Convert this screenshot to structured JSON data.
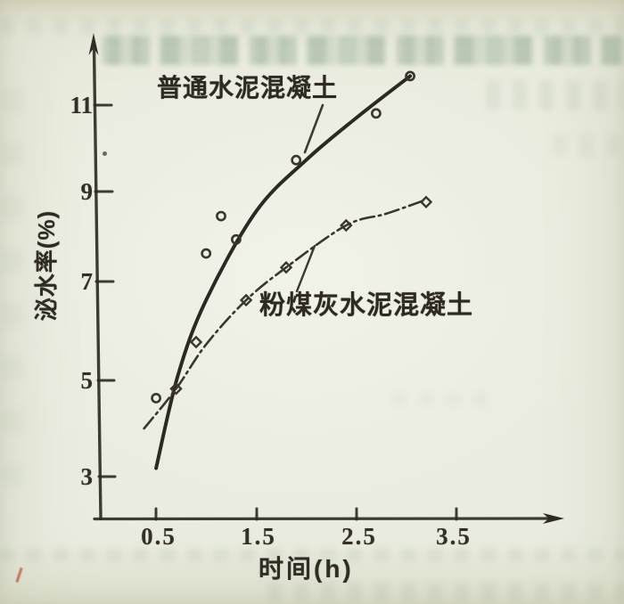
{
  "figure_kind": "scanned chart from printed page",
  "chart_data": {
    "type": "line",
    "title": "",
    "xlabel": "时间(h)",
    "ylabel": "泌水率(%)",
    "x_tick_labels": [
      "0.5",
      "1.5",
      "2.5",
      "3.5"
    ],
    "y_tick_labels": [
      "11",
      "9",
      "7",
      "5",
      "3"
    ],
    "xlim": [
      0,
      4.6
    ],
    "ylim": [
      2.1,
      12.6
    ],
    "grid": false,
    "legend_position": "inline annotations with leader lines",
    "series": [
      {
        "name": "普通水泥混凝土",
        "marker": "circle",
        "line_style": "solid",
        "points": [
          [
            0.5,
            4.7
          ],
          [
            1.0,
            7.8
          ],
          [
            1.15,
            8.6
          ],
          [
            1.3,
            8.1
          ],
          [
            1.9,
            9.8
          ],
          [
            2.7,
            10.8
          ],
          [
            3.04,
            11.6
          ]
        ],
        "trend": [
          [
            0.5,
            3.2
          ],
          [
            0.72,
            5.2
          ],
          [
            1.0,
            6.8
          ],
          [
            1.5,
            8.7
          ],
          [
            2.0,
            9.8
          ],
          [
            2.5,
            10.7
          ],
          [
            3.04,
            11.6
          ]
        ]
      },
      {
        "name": "粉煤灰水泥混凝土",
        "marker": "diamond",
        "line_style": "dash-dot",
        "points": [
          [
            0.7,
            4.9
          ],
          [
            0.9,
            5.9
          ],
          [
            1.4,
            6.8
          ],
          [
            1.8,
            7.5
          ],
          [
            2.4,
            8.4
          ],
          [
            3.2,
            8.9
          ]
        ],
        "trend": [
          [
            0.38,
            4.05
          ],
          [
            0.7,
            4.9
          ],
          [
            1.0,
            5.85
          ],
          [
            1.4,
            6.8
          ],
          [
            1.8,
            7.5
          ],
          [
            2.4,
            8.4
          ],
          [
            2.8,
            8.65
          ],
          [
            3.2,
            8.95
          ]
        ]
      }
    ],
    "annotations": [
      {
        "text": "普通水泥混凝土",
        "series_index": 0
      },
      {
        "text": "粉煤灰水泥混凝土",
        "series_index": 1
      }
    ]
  }
}
